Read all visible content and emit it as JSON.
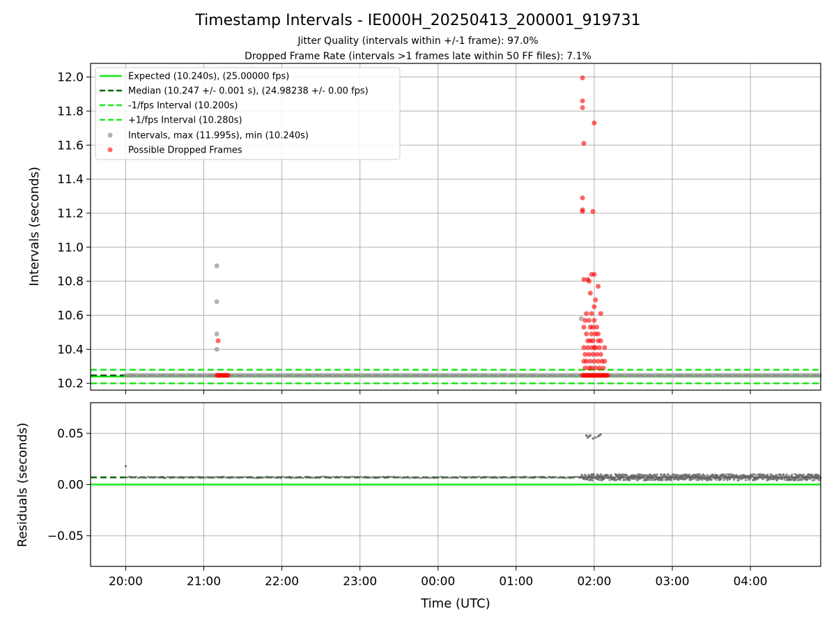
{
  "figure": {
    "title": "Timestamp Intervals - IE000H_20250413_200001_919731",
    "subtitle_1": "Jitter Quality (intervals within +/-1 frame): 97.0%",
    "subtitle_2": "Dropped Frame Rate (intervals >1 frames late within 50 FF files): 7.1%",
    "xlabel": "Time (UTC)"
  },
  "colors": {
    "expected": "#19e619",
    "median": "#006400",
    "fps_band": "#19e619",
    "intervals": "#999999",
    "dropped": "#ff0000",
    "residual_points": "#666666",
    "grid": "#b0b0b0"
  },
  "chart_data": [
    {
      "type": "scatter",
      "panel": "top",
      "ylabel": "Intervals (seconds)",
      "xlim": [
        "19:33",
        "04:54"
      ],
      "ylim": [
        10.16,
        12.08
      ],
      "x_ticks": [
        "20:00",
        "21:00",
        "22:00",
        "23:00",
        "00:00",
        "01:00",
        "02:00",
        "03:00",
        "04:00"
      ],
      "y_ticks": [
        "10.2",
        "10.4",
        "10.6",
        "10.8",
        "11.0",
        "11.2",
        "11.4",
        "11.6",
        "11.8",
        "12.0"
      ],
      "grid": true,
      "legend_position": "top-left",
      "legend": [
        "Expected (10.240s), (25.00000 fps)",
        "Median (10.247 +/- 0.001 s), (24.98238 +/- 0.00 fps)",
        "-1/fps Interval (10.200s)",
        "+1/fps Interval (10.280s)",
        "Intervals, max (11.995s), min (10.240s)",
        "Possible Dropped Frames"
      ],
      "lines": [
        {
          "name": "Expected",
          "y": 10.24,
          "style": "solid"
        },
        {
          "name": "Median",
          "y": 10.247,
          "style": "dashed"
        },
        {
          "name": "-1/fps Interval",
          "y": 10.2,
          "style": "dashed"
        },
        {
          "name": "+1/fps Interval",
          "y": 10.28,
          "style": "dashed"
        }
      ],
      "baseline_points": {
        "x_start": "20:00",
        "x_end": "04:54",
        "y": 10.247
      },
      "intervals": [
        {
          "x": "21:10",
          "y": 10.89
        },
        {
          "x": "21:10",
          "y": 10.68
        },
        {
          "x": "21:10",
          "y": 10.49
        },
        {
          "x": "21:10",
          "y": 10.4
        },
        {
          "x": "01:50",
          "y": 10.58
        }
      ],
      "dropped_frames_cluster_1": {
        "x_start": "21:10",
        "x_end": "21:19",
        "y": 10.247
      },
      "dropped_frames_cluster_1_points": [
        {
          "x": "21:11",
          "y": 10.45
        }
      ],
      "dropped_frames_cluster_2": {
        "x_start": "01:51",
        "x_end": "02:11",
        "y": 10.247
      },
      "dropped_frames_cluster_2_points": [
        {
          "x": "01:51",
          "y": 11.995
        },
        {
          "x": "01:51",
          "y": 11.86
        },
        {
          "x": "01:51",
          "y": 11.82
        },
        {
          "x": "01:52",
          "y": 11.61
        },
        {
          "x": "01:51",
          "y": 11.29
        },
        {
          "x": "01:51",
          "y": 11.22
        },
        {
          "x": "01:51",
          "y": 11.21
        },
        {
          "x": "02:00",
          "y": 11.73
        },
        {
          "x": "01:59",
          "y": 11.21
        },
        {
          "x": "01:52",
          "y": 10.81
        },
        {
          "x": "01:55",
          "y": 10.81
        },
        {
          "x": "01:56",
          "y": 10.8
        },
        {
          "x": "01:58",
          "y": 10.84
        },
        {
          "x": "02:00",
          "y": 10.84
        },
        {
          "x": "02:03",
          "y": 10.77
        },
        {
          "x": "01:57",
          "y": 10.73
        },
        {
          "x": "02:01",
          "y": 10.69
        },
        {
          "x": "02:00",
          "y": 10.65
        },
        {
          "x": "01:54",
          "y": 10.61
        },
        {
          "x": "01:58",
          "y": 10.61
        },
        {
          "x": "02:05",
          "y": 10.61
        },
        {
          "x": "01:53",
          "y": 10.57
        },
        {
          "x": "01:56",
          "y": 10.57
        },
        {
          "x": "02:00",
          "y": 10.57
        },
        {
          "x": "01:52",
          "y": 10.53
        },
        {
          "x": "01:57",
          "y": 10.53
        },
        {
          "x": "01:59",
          "y": 10.53
        },
        {
          "x": "02:02",
          "y": 10.53
        },
        {
          "x": "01:54",
          "y": 10.49
        },
        {
          "x": "01:58",
          "y": 10.49
        },
        {
          "x": "02:01",
          "y": 10.49
        },
        {
          "x": "02:03",
          "y": 10.49
        },
        {
          "x": "01:55",
          "y": 10.45
        },
        {
          "x": "01:57",
          "y": 10.45
        },
        {
          "x": "01:59",
          "y": 10.45
        },
        {
          "x": "02:03",
          "y": 10.45
        },
        {
          "x": "02:05",
          "y": 10.45
        },
        {
          "x": "01:52",
          "y": 10.41
        },
        {
          "x": "01:55",
          "y": 10.41
        },
        {
          "x": "01:58",
          "y": 10.41
        },
        {
          "x": "02:00",
          "y": 10.41
        },
        {
          "x": "02:01",
          "y": 10.41
        },
        {
          "x": "02:04",
          "y": 10.41
        },
        {
          "x": "02:08",
          "y": 10.41
        },
        {
          "x": "01:53",
          "y": 10.37
        },
        {
          "x": "01:56",
          "y": 10.37
        },
        {
          "x": "01:59",
          "y": 10.37
        },
        {
          "x": "02:02",
          "y": 10.37
        },
        {
          "x": "02:05",
          "y": 10.37
        },
        {
          "x": "01:52",
          "y": 10.33
        },
        {
          "x": "01:54",
          "y": 10.33
        },
        {
          "x": "01:57",
          "y": 10.33
        },
        {
          "x": "02:00",
          "y": 10.33
        },
        {
          "x": "02:03",
          "y": 10.33
        },
        {
          "x": "02:06",
          "y": 10.33
        },
        {
          "x": "02:08",
          "y": 10.33
        },
        {
          "x": "01:53",
          "y": 10.29
        },
        {
          "x": "01:56",
          "y": 10.29
        },
        {
          "x": "01:58",
          "y": 10.29
        },
        {
          "x": "02:01",
          "y": 10.29
        },
        {
          "x": "02:04",
          "y": 10.29
        },
        {
          "x": "02:07",
          "y": 10.29
        }
      ]
    },
    {
      "type": "scatter",
      "panel": "bottom",
      "ylabel": "Residuals (seconds)",
      "xlim": [
        "19:33",
        "04:54"
      ],
      "ylim": [
        -0.08,
        0.08
      ],
      "x_ticks": [
        "20:00",
        "21:00",
        "22:00",
        "23:00",
        "00:00",
        "01:00",
        "02:00",
        "03:00",
        "04:00"
      ],
      "y_ticks": [
        "0.05",
        "0.00",
        "−0.05"
      ],
      "grid": true,
      "lines": [
        {
          "name": "Zero",
          "y": 0.0,
          "style": "solid"
        },
        {
          "name": "Median residual",
          "y": 0.007,
          "style": "dashed"
        }
      ],
      "baseline_residual": {
        "x_start": "20:00",
        "x_end": "04:54",
        "y": 0.007
      },
      "dense_residual_band": {
        "x_start": "01:50",
        "x_end": "04:54",
        "y_min": 0.004,
        "y_max": 0.01
      },
      "outlier_residuals": [
        {
          "x": "20:00",
          "y": 0.018
        },
        {
          "x": "01:54",
          "y": 0.048
        },
        {
          "x": "01:55",
          "y": 0.046
        },
        {
          "x": "01:56",
          "y": 0.047
        },
        {
          "x": "01:57",
          "y": 0.048
        },
        {
          "x": "01:59",
          "y": 0.045
        },
        {
          "x": "02:01",
          "y": 0.046
        },
        {
          "x": "02:03",
          "y": 0.047
        },
        {
          "x": "02:04",
          "y": 0.048
        },
        {
          "x": "02:05",
          "y": 0.049
        }
      ]
    }
  ]
}
